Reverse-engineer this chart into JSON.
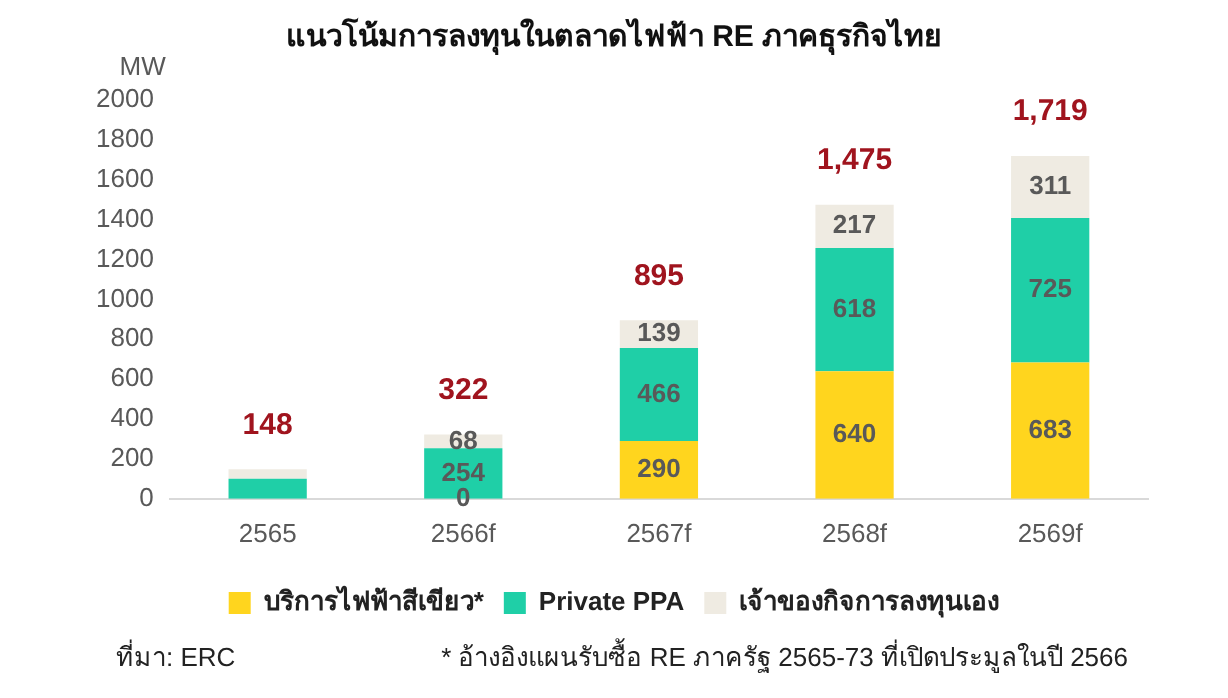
{
  "chart_data": {
    "type": "bar",
    "stacked": true,
    "title": "แนวโน้มการลงทุนในตลาดไฟฟ้า RE ภาคธุรกิจไทย",
    "ylabel": "MW",
    "categories": [
      "2565",
      "2566f",
      "2567f",
      "2568f",
      "2569f"
    ],
    "series": [
      {
        "name": "บริการไฟฟ้าสีเขียว*",
        "color": "#ffd51e",
        "values": [
          0,
          0,
          290,
          640,
          683
        ],
        "value_labels": [
          null,
          "0",
          "290",
          "640",
          "683"
        ]
      },
      {
        "name": "Private PPA",
        "color": "#1fcfa7",
        "values": [
          100,
          254,
          466,
          618,
          725
        ],
        "value_labels": [
          null,
          "254",
          "466",
          "618",
          "725"
        ]
      },
      {
        "name": "เจ้าของกิจการลงทุนเอง",
        "color": "#efebe2",
        "values": [
          48,
          68,
          139,
          217,
          311
        ],
        "value_labels": [
          null,
          "68",
          "139",
          "217",
          "311"
        ]
      }
    ],
    "totals": [
      "148",
      "322",
      "895",
      "1,475",
      "1,719"
    ],
    "ylim": [
      0,
      2000
    ],
    "yticks": [
      0,
      200,
      400,
      600,
      800,
      1000,
      1200,
      1400,
      1600,
      1800,
      2000
    ],
    "grid": false,
    "legend": "bottom",
    "annotations": [
      "ที่มา: ERC",
      "* อ้างอิงแผนรับซื้อ RE ภาครัฐ 2565-73 ที่เปิดประมูลในปี 2566"
    ]
  }
}
